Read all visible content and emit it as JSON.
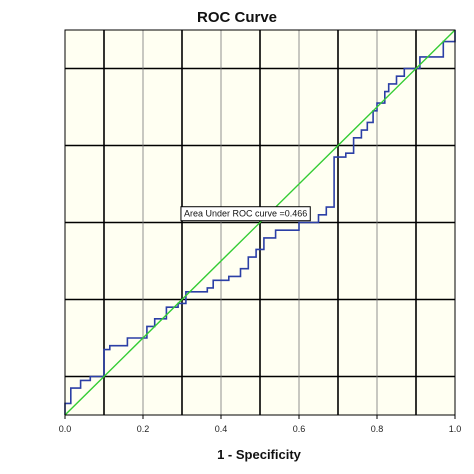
{
  "chart_data": {
    "type": "line",
    "title": "ROC Curve",
    "xlabel": "1 - Specificity",
    "ylabel": "",
    "xlim": [
      0,
      1
    ],
    "ylim": [
      0,
      1
    ],
    "x_ticks": [
      "0.0",
      "0.2",
      "0.4",
      "0.6",
      "0.8",
      "1.0"
    ],
    "grid": true,
    "annotation": "Area Under ROC curve =0.466",
    "colors": {
      "roc_line": "#2b3fa6",
      "reference_line": "#33cc33",
      "background": "#fffff2",
      "grid": "#000000"
    },
    "series": [
      {
        "style": "roc",
        "x": [
          0,
          0,
          0.015,
          0.015,
          0.04,
          0.04,
          0.065,
          0.065,
          0.1,
          0.1,
          0.115,
          0.115,
          0.16,
          0.16,
          0.21,
          0.21,
          0.23,
          0.23,
          0.26,
          0.26,
          0.29,
          0.29,
          0.31,
          0.31,
          0.365,
          0.365,
          0.38,
          0.38,
          0.42,
          0.42,
          0.45,
          0.45,
          0.47,
          0.47,
          0.49,
          0.49,
          0.51,
          0.51,
          0.54,
          0.54,
          0.6,
          0.6,
          0.65,
          0.65,
          0.67,
          0.67,
          0.69,
          0.69,
          0.72,
          0.72,
          0.74,
          0.74,
          0.76,
          0.76,
          0.775,
          0.775,
          0.79,
          0.79,
          0.8,
          0.8,
          0.82,
          0.82,
          0.83,
          0.83,
          0.85,
          0.85,
          0.87,
          0.87,
          0.91,
          0.91,
          0.97,
          0.97,
          1.0,
          1.0
        ],
        "y": [
          0,
          0.03,
          0.03,
          0.07,
          0.07,
          0.09,
          0.09,
          0.1,
          0.1,
          0.17,
          0.17,
          0.18,
          0.18,
          0.2,
          0.2,
          0.23,
          0.23,
          0.25,
          0.25,
          0.28,
          0.28,
          0.29,
          0.29,
          0.32,
          0.32,
          0.33,
          0.33,
          0.35,
          0.35,
          0.36,
          0.36,
          0.38,
          0.38,
          0.41,
          0.41,
          0.43,
          0.43,
          0.46,
          0.46,
          0.48,
          0.48,
          0.5,
          0.5,
          0.52,
          0.52,
          0.54,
          0.54,
          0.67,
          0.67,
          0.68,
          0.68,
          0.72,
          0.72,
          0.74,
          0.74,
          0.76,
          0.76,
          0.79,
          0.79,
          0.81,
          0.81,
          0.84,
          0.84,
          0.86,
          0.86,
          0.88,
          0.88,
          0.9,
          0.9,
          0.93,
          0.93,
          0.97,
          0.97,
          1.0
        ]
      },
      {
        "style": "reference",
        "x": [
          0,
          1
        ],
        "y": [
          0,
          1
        ]
      }
    ]
  }
}
